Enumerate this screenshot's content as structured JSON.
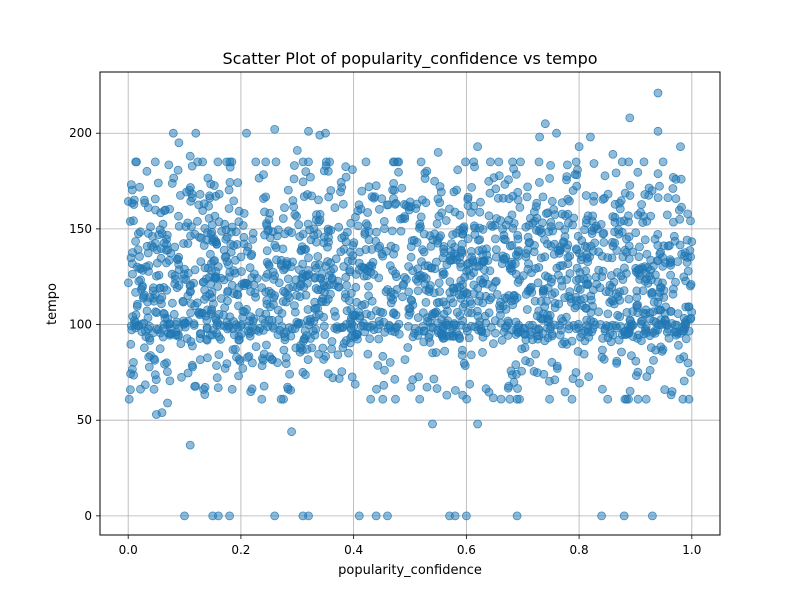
{
  "chart_data": {
    "type": "scatter",
    "title": "Scatter Plot of popularity_confidence vs tempo",
    "xlabel": "popularity_confidence",
    "ylabel": "tempo",
    "xlim": [
      -0.05,
      1.05
    ],
    "ylim": [
      -10,
      232
    ],
    "x_ticks": [
      0.0,
      0.2,
      0.4,
      0.6,
      0.8,
      1.0
    ],
    "x_tick_labels": [
      "0.0",
      "0.2",
      "0.4",
      "0.6",
      "0.8",
      "1.0"
    ],
    "y_ticks": [
      0,
      50,
      100,
      150,
      200
    ],
    "y_tick_labels": [
      "0",
      "50",
      "100",
      "150",
      "200"
    ],
    "grid": true,
    "legend": "none",
    "marker_color": "#1f77b4",
    "marker_alpha": 0.5,
    "point_count": 2000,
    "points": [
      [
        0.1,
        0
      ],
      [
        0.15,
        0
      ],
      [
        0.16,
        0
      ],
      [
        0.18,
        0
      ],
      [
        0.26,
        0
      ],
      [
        0.31,
        0
      ],
      [
        0.32,
        0
      ],
      [
        0.41,
        0
      ],
      [
        0.44,
        0
      ],
      [
        0.46,
        0
      ],
      [
        0.57,
        0
      ],
      [
        0.58,
        0
      ],
      [
        0.6,
        0
      ],
      [
        0.69,
        0
      ],
      [
        0.84,
        0
      ],
      [
        0.88,
        0
      ],
      [
        0.93,
        0
      ],
      [
        0.11,
        37
      ],
      [
        0.29,
        44
      ],
      [
        0.54,
        48
      ],
      [
        0.62,
        48
      ],
      [
        0.05,
        53
      ],
      [
        0.06,
        54
      ],
      [
        0.07,
        59
      ],
      [
        0.08,
        200
      ],
      [
        0.12,
        200
      ],
      [
        0.21,
        200
      ],
      [
        0.26,
        202
      ],
      [
        0.32,
        201
      ],
      [
        0.34,
        199
      ],
      [
        0.35,
        200
      ],
      [
        0.73,
        198
      ],
      [
        0.74,
        205
      ],
      [
        0.76,
        200
      ],
      [
        0.82,
        198
      ],
      [
        0.89,
        208
      ],
      [
        0.94,
        221
      ],
      [
        0.94,
        201
      ],
      [
        0.98,
        193
      ],
      [
        0.09,
        195
      ],
      [
        0.11,
        188
      ],
      [
        0.3,
        191
      ],
      [
        0.48,
        185
      ],
      [
        0.55,
        190
      ],
      [
        0.62,
        193
      ],
      [
        0.8,
        193
      ],
      [
        0.86,
        189
      ]
    ],
    "cloud": {
      "x_range": [
        0.0,
        1.0
      ],
      "y_band": [
        63,
        185
      ],
      "y_center": 125,
      "y_spread": 28
    }
  }
}
